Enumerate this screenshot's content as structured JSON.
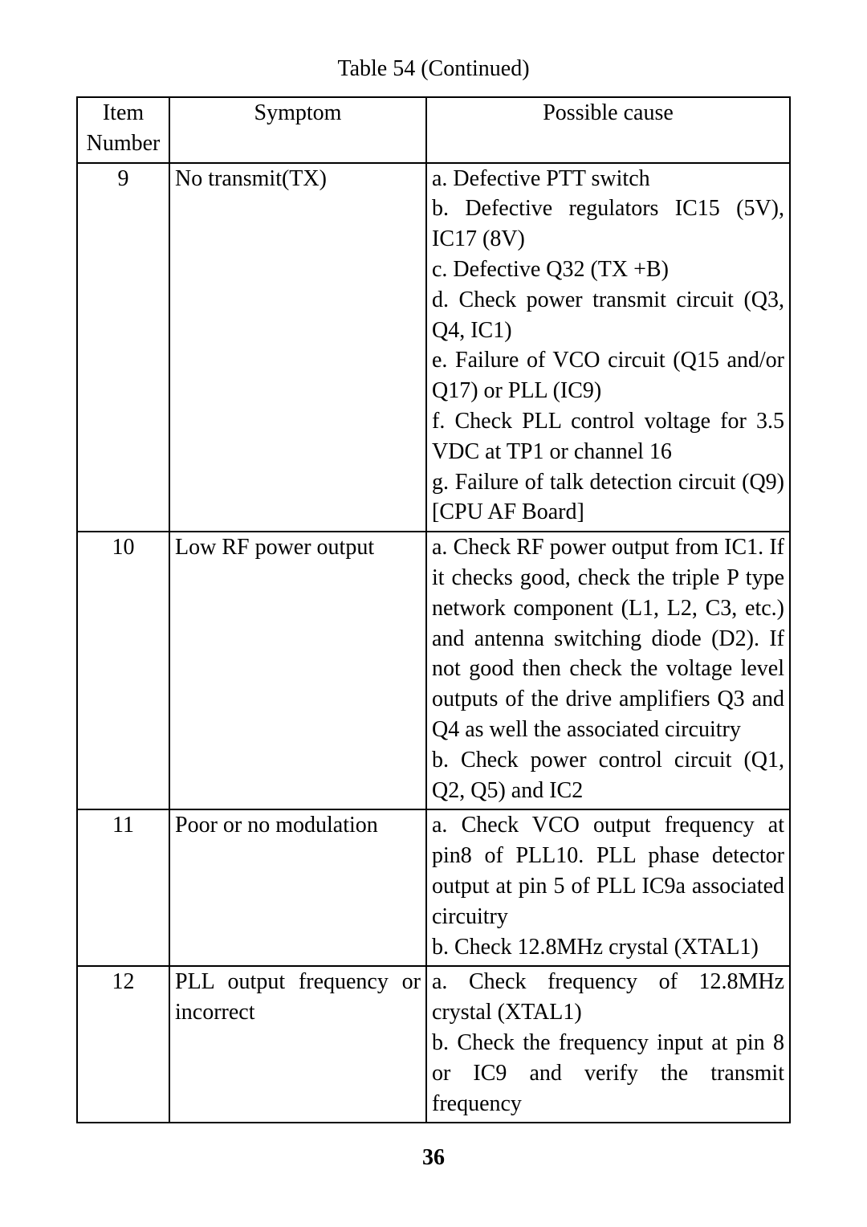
{
  "caption": "Table 54 (Continued)",
  "header": {
    "col1_line1": "Item",
    "col1_line2": "Number",
    "col2": "Symptom",
    "col3": "Possible cause"
  },
  "rows": [
    {
      "num": "9",
      "symptom": "No transmit(TX)",
      "cause_lines": [
        "a. Defective PTT switch",
        "b. Defective regulators IC15 (5V), IC17 (8V)",
        "c. Defective Q32 (TX +B)",
        "d. Check power transmit circuit (Q3, Q4, IC1)",
        "e. Failure of VCO circuit (Q15 and/or Q17) or PLL (IC9)",
        "f. Check PLL control voltage for 3.5 VDC at TP1 or channel 16",
        "g. Failure of talk detection circuit (Q9) [CPU AF Board]"
      ]
    },
    {
      "num": "10",
      "symptom": "Low RF power output",
      "cause_lines": [
        "a. Check RF power output from IC1. If it checks good, check the triple P type network component (L1, L2, C3, etc.) and antenna switching diode (D2). If not good then check the voltage level outputs of the drive amplifiers Q3 and Q4 as well the associated circuitry",
        "b. Check power control circuit (Q1, Q2, Q5) and IC2"
      ]
    },
    {
      "num": "11",
      "symptom": "Poor or no modulation",
      "cause_lines": [
        "a. Check VCO output frequency at pin8 of PLL10. PLL phase detector output at pin 5 of PLL IC9a associated circuitry",
        "b. Check 12.8MHz crystal (XTAL1)"
      ]
    },
    {
      "num": "12",
      "symptom": "PLL output frequency or incorrect",
      "cause_lines": [
        "a. Check frequency of 12.8MHz crystal (XTAL1)",
        "b. Check the frequency input at pin 8 or IC9 and verify the transmit frequency"
      ]
    }
  ],
  "page_number": "36"
}
